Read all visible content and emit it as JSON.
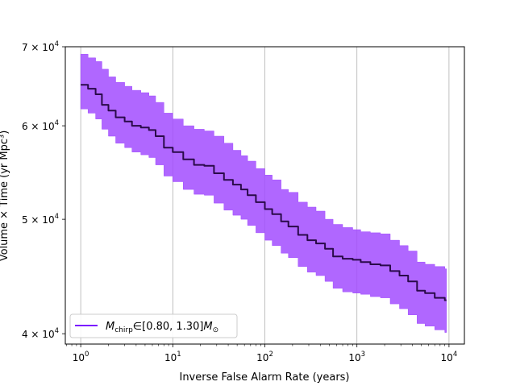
{
  "chart_data": {
    "type": "area",
    "xlabel": "Inverse False Alarm Rate (years)",
    "ylabel": "Volume × Time (yr Mpc³)",
    "xscale": "log",
    "yscale": "log",
    "xlim": [
      0.68,
      14700
    ],
    "ylim": [
      39200,
      70000
    ],
    "grid": "vertical",
    "legend_position": "lower left",
    "x_ticks": [
      {
        "value": 1,
        "base": "10",
        "exp": "0"
      },
      {
        "value": 10,
        "base": "10",
        "exp": "1"
      },
      {
        "value": 100,
        "base": "10",
        "exp": "2"
      },
      {
        "value": 1000,
        "base": "10",
        "exp": "3"
      },
      {
        "value": 10000,
        "base": "10",
        "exp": "4"
      }
    ],
    "y_ticks": [
      {
        "value": 40000,
        "mant": "4 × 10",
        "exp": "4"
      },
      {
        "value": 50000,
        "mant": "5 × 10",
        "exp": "4"
      },
      {
        "value": 60000,
        "mant": "6 × 10",
        "exp": "4"
      },
      {
        "value": 70000,
        "mant": "7 × 10",
        "exp": "4"
      }
    ],
    "series": [
      {
        "label_symbol": "M",
        "label_sub": "chirp",
        "label_range": "∈[0.80, 1.30]",
        "label_unit_symbol": "M",
        "label_unit_sub": "⊙",
        "line_color": "#7b16ff",
        "median_color": "#2a0a4a",
        "fill_color": "#a24cff",
        "x": [
          1,
          1.2,
          1.45,
          1.7,
          2,
          2.4,
          3,
          3.6,
          4.5,
          5.5,
          6.5,
          8,
          10,
          13,
          17,
          22,
          28,
          36,
          45,
          55,
          65,
          80,
          100,
          120,
          150,
          180,
          230,
          290,
          360,
          450,
          550,
          700,
          900,
          1100,
          1400,
          1800,
          2300,
          2900,
          3600,
          4500,
          5500,
          7000,
          9000
        ],
        "median": [
          65000,
          64500,
          63800,
          62500,
          61800,
          61000,
          60500,
          60000,
          59800,
          59500,
          58800,
          57500,
          57000,
          56200,
          55600,
          55500,
          54700,
          54000,
          53500,
          53000,
          52400,
          51700,
          51000,
          50500,
          49800,
          49300,
          48500,
          48000,
          47700,
          47200,
          46500,
          46300,
          46200,
          46000,
          45800,
          45700,
          45200,
          44800,
          44300,
          43500,
          43300,
          42900,
          42700
        ],
        "upper": [
          69000,
          68500,
          68000,
          67000,
          66000,
          65300,
          64800,
          64300,
          64000,
          63600,
          62800,
          61500,
          60800,
          60000,
          59600,
          59400,
          58800,
          58000,
          57200,
          56600,
          56000,
          55200,
          54500,
          54000,
          53000,
          52700,
          51700,
          51200,
          50800,
          50000,
          49500,
          49200,
          49000,
          48800,
          48700,
          48600,
          48000,
          47500,
          47000,
          46000,
          45800,
          45600,
          45400
        ],
        "lower": [
          62000,
          61500,
          60800,
          59600,
          58800,
          58000,
          57500,
          57000,
          56700,
          56400,
          55600,
          54400,
          53800,
          53000,
          52500,
          52400,
          51600,
          50900,
          50400,
          50000,
          49400,
          48700,
          48000,
          47500,
          46800,
          46400,
          45600,
          45100,
          44800,
          44300,
          43700,
          43400,
          43300,
          43200,
          43000,
          42900,
          42400,
          42000,
          41500,
          40800,
          40600,
          40300,
          40100
        ]
      }
    ]
  }
}
